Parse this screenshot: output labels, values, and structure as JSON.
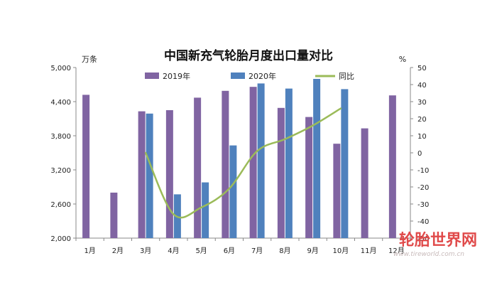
{
  "chart_data": {
    "type": "bar",
    "title": "中国新充气轮胎月度出口量对比",
    "y_left_unit": "万条",
    "y_right_unit": "%",
    "categories": [
      "1月",
      "2月",
      "3月",
      "4月",
      "5月",
      "6月",
      "7月",
      "8月",
      "9月",
      "10月",
      "11月",
      "12月"
    ],
    "y_left_ticks": [
      "2,000",
      "2,600",
      "3,200",
      "3,800",
      "4,400",
      "5,000"
    ],
    "y_right_ticks": [
      "-50",
      "-40",
      "-30",
      "-20",
      "-10",
      "0",
      "10",
      "20",
      "30",
      "40",
      "50"
    ],
    "ylim_left": [
      2000,
      5000
    ],
    "ylim_right": [
      -50,
      50
    ],
    "series": [
      {
        "name": "2019年",
        "kind": "bar",
        "axis": "left",
        "color": "#8064a2",
        "values": [
          4520,
          2800,
          4230,
          4250,
          4470,
          4590,
          4660,
          4290,
          4130,
          3660,
          3930,
          4510
        ]
      },
      {
        "name": "2020年",
        "kind": "bar",
        "axis": "left",
        "color": "#4f81bd",
        "values": [
          null,
          null,
          4190,
          2770,
          2980,
          3630,
          4720,
          4630,
          4800,
          4620,
          null,
          null
        ]
      },
      {
        "name": "同比",
        "kind": "line",
        "axis": "right",
        "color": "#9bbb59",
        "values": [
          null,
          null,
          0,
          -36,
          -32,
          -21,
          1,
          8,
          16,
          26,
          null,
          null
        ]
      }
    ],
    "legend_position": "top",
    "grid": false
  },
  "watermark": {
    "text_cn": "轮胎世界网",
    "text_en": "www.tireworld.com.cn"
  }
}
